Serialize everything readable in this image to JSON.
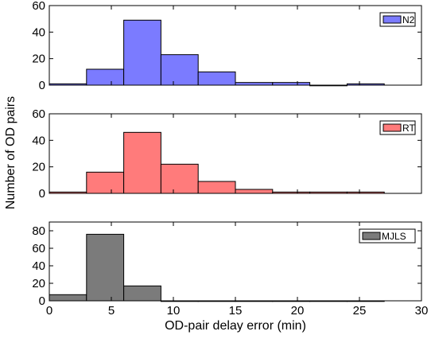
{
  "chart_data": [
    {
      "type": "bar",
      "bins": [
        [
          0,
          3
        ],
        [
          3,
          6
        ],
        [
          6,
          9
        ],
        [
          9,
          12
        ],
        [
          12,
          15
        ],
        [
          15,
          18
        ],
        [
          18,
          21
        ],
        [
          21,
          24
        ],
        [
          24,
          27
        ]
      ],
      "series": [
        {
          "name": "N2",
          "values": [
            1,
            12,
            49,
            23,
            10,
            2,
            2,
            0,
            1
          ]
        }
      ],
      "color": "#7b7bff",
      "xlim": [
        0,
        30
      ],
      "ylim": [
        0,
        60
      ],
      "yticks": [
        0,
        20,
        40,
        60
      ],
      "legend": "top-right"
    },
    {
      "type": "bar",
      "bins": [
        [
          0,
          3
        ],
        [
          3,
          6
        ],
        [
          6,
          9
        ],
        [
          9,
          12
        ],
        [
          12,
          15
        ],
        [
          15,
          18
        ],
        [
          18,
          21
        ],
        [
          21,
          24
        ],
        [
          24,
          27
        ]
      ],
      "series": [
        {
          "name": "RT",
          "values": [
            1,
            16,
            46,
            22,
            9,
            3,
            1,
            1,
            1
          ]
        }
      ],
      "color": "#ff7b7b",
      "xlim": [
        0,
        30
      ],
      "ylim": [
        0,
        60
      ],
      "yticks": [
        0,
        20,
        40,
        60
      ],
      "legend": "top-right"
    },
    {
      "type": "bar",
      "bins": [
        [
          0,
          3
        ],
        [
          3,
          6
        ],
        [
          6,
          9
        ],
        [
          9,
          12
        ],
        [
          12,
          15
        ],
        [
          15,
          18
        ],
        [
          18,
          21
        ],
        [
          21,
          24
        ],
        [
          24,
          27
        ]
      ],
      "series": [
        {
          "name": "MJLS",
          "values": [
            7,
            76,
            17,
            0,
            0,
            0,
            0,
            0,
            0
          ]
        }
      ],
      "color": "#7b7b7b",
      "xlim": [
        0,
        30
      ],
      "ylim": [
        0,
        90
      ],
      "yticks": [
        0,
        20,
        40,
        60,
        80
      ],
      "legend": "top-right"
    }
  ],
  "xticks": [
    0,
    5,
    10,
    15,
    20,
    25,
    30
  ],
  "xlabel": "OD-pair delay error (min)",
  "ylabel": "Number of OD pairs"
}
